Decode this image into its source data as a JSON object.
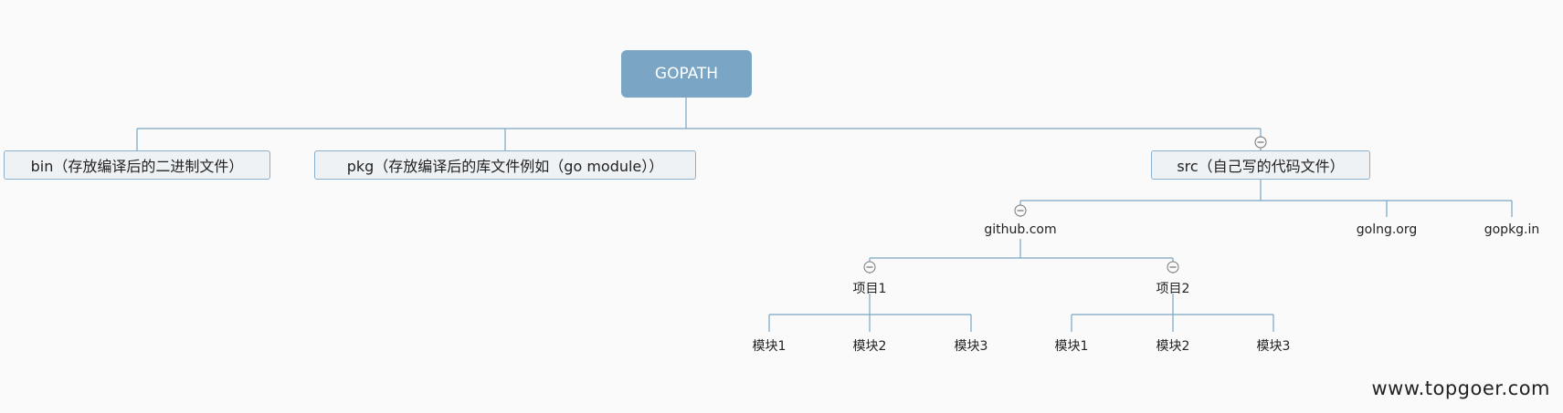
{
  "diagram": {
    "root": "GOPATH",
    "level1": {
      "bin": "bin（存放编译后的二进制文件）",
      "pkg": "pkg（存放编译后的库文件例如（go module））",
      "src": "src（自己写的代码文件）"
    },
    "level2": {
      "github": "github.com",
      "golng": "golng.org",
      "gopkg": "gopkg.in"
    },
    "projects": {
      "p1": "项目1",
      "p2": "项目2"
    },
    "modules": {
      "p1": [
        "模块1",
        "模块2",
        "模块3"
      ],
      "p2": [
        "模块1",
        "模块2",
        "模块3"
      ]
    }
  },
  "watermark": "www.topgoer.com",
  "colors": {
    "root_fill": "#7aa5c4",
    "line": "#7aa5c4",
    "box_border": "#8ab0cd",
    "box_fill": "#eef2f5"
  }
}
